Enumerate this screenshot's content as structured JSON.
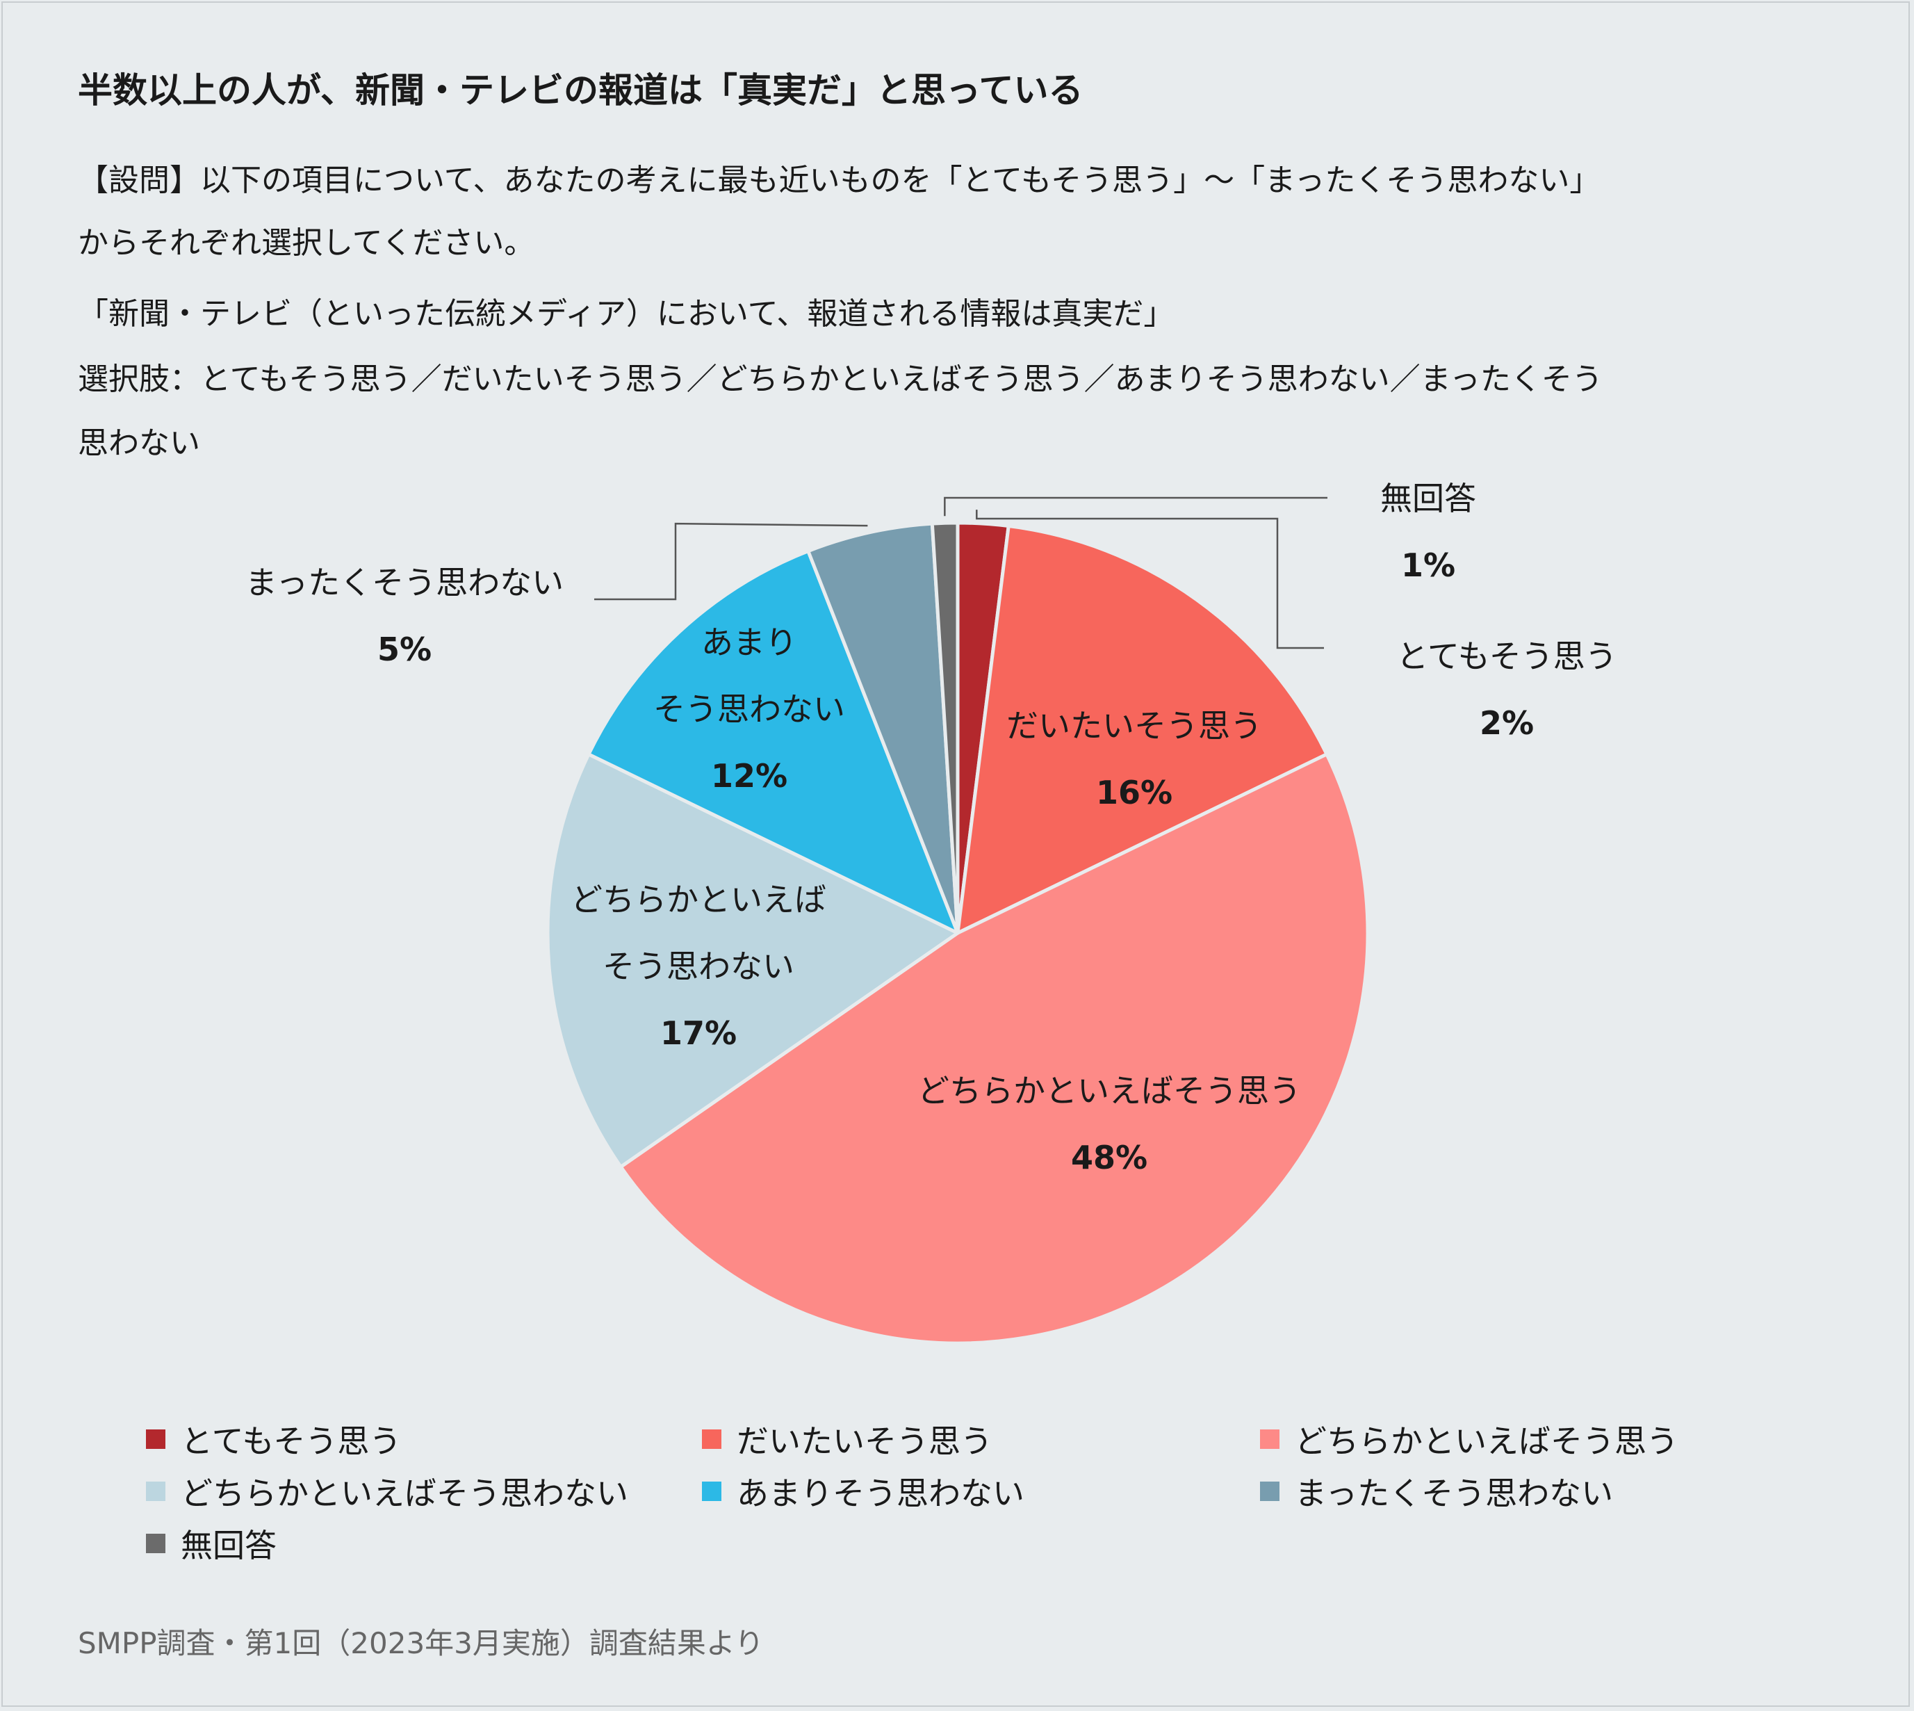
{
  "title": "半数以上の人が、新聞・テレビの報道は「真実だ」と思っている",
  "description": [
    "【設問】以下の項目について、あなたの考えに最も近いものを「とてもそう思う」〜「まったくそう思わない」",
    "からそれぞれ選択してください。",
    "「新聞・テレビ（といった伝統メディア）において、報道される情報は真実だ」",
    "選択肢：とてもそう思う／だいたいそう思う／どちらかといえばそう思う／あまりそう思わない／まったくそう",
    "思わない"
  ],
  "source": "SMPP調査・第1回（2023年3月実施）調査結果より",
  "chart_data": {
    "type": "pie",
    "unit": "%",
    "slices": [
      {
        "label": "とてもそう思う",
        "value": 2,
        "color": "#b3282d",
        "chart_label": [
          "とてもそう思う"
        ],
        "value_label": "2%"
      },
      {
        "label": "だいたいそう思う",
        "value": 16,
        "color": "#f7665c",
        "chart_label": [
          "だいたいそう思う"
        ],
        "value_label": "16%"
      },
      {
        "label": "どちらかといえばそう思う",
        "value": 48,
        "color": "#fd8a87",
        "chart_label": [
          "どちらかといえばそう思う"
        ],
        "value_label": "48%"
      },
      {
        "label": "どちらかといえばそう思わない",
        "value": 17,
        "color": "#bcd6e0",
        "chart_label": [
          "どちらかといえば",
          "そう思わない"
        ],
        "value_label": "17%"
      },
      {
        "label": "あまりそう思わない",
        "value": 12,
        "color": "#2cb9e6",
        "chart_label": [
          "あまり",
          "そう思わない"
        ],
        "value_label": "12%"
      },
      {
        "label": "まったくそう思わない",
        "value": 5,
        "color": "#789daf",
        "chart_label": [
          "まったくそう思わない"
        ],
        "value_label": "5%"
      },
      {
        "label": "無回答",
        "value": 1,
        "color": "#6b6b6b",
        "chart_label": [
          "無回答"
        ],
        "value_label": "1%"
      }
    ],
    "legend_position": "bottom"
  }
}
